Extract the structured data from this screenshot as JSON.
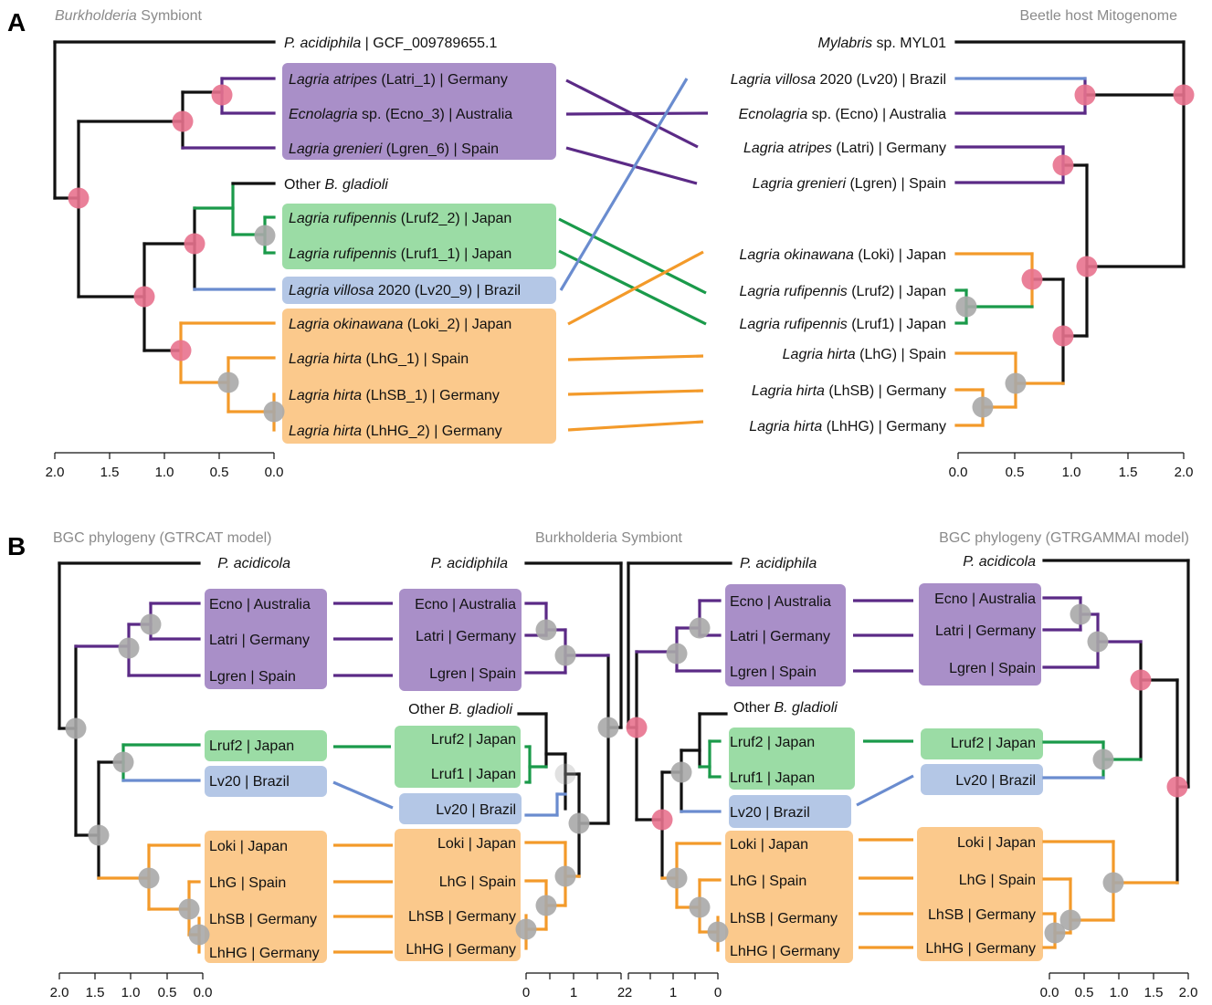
{
  "colors": {
    "purple": "#5b2a86",
    "green": "#1a9a4a",
    "blue": "#6a8ccf",
    "orange": "#f39a2a",
    "black": "#111111",
    "box_purple": "#a98fc8",
    "box_green": "#9bdca5",
    "box_blue": "#b4c7e6",
    "box_orange": "#fbc98c",
    "node_pink": "#e8728e",
    "node_grey": "#a8a8a8"
  },
  "panelA": {
    "letter": "A",
    "left_header_italic": "Burkholderia",
    "left_header_rest": " Symbiont",
    "right_header": "Beetle host Mitogenome",
    "left_tips": [
      {
        "name": "P. acidiphila",
        "rest": " | GCF_009789655.1",
        "color": "black"
      },
      {
        "name": "Lagria atripes",
        "rest": " (Latri_1) | Germany",
        "color": "purple"
      },
      {
        "name": "Ecnolagria",
        "rest": " sp. (Ecno_3) | Australia",
        "color": "purple"
      },
      {
        "name": "Lagria grenieri",
        "rest": " (Lgren_6) | Spain",
        "color": "purple"
      },
      {
        "pre": "Other ",
        "name": "B. gladioli",
        "rest": "",
        "color": "black"
      },
      {
        "name": "Lagria rufipennis",
        "rest": " (Lruf2_2) | Japan",
        "color": "green"
      },
      {
        "name": "Lagria rufipennis",
        "rest": " (Lruf1_1) | Japan",
        "color": "green"
      },
      {
        "name": "Lagria villosa",
        "rest": " 2020 (Lv20_9) | Brazil",
        "color": "blue"
      },
      {
        "name": "Lagria okinawana",
        "rest": " (Loki_2) | Japan",
        "color": "orange"
      },
      {
        "name": "Lagria hirta",
        "rest": " (LhG_1) | Spain",
        "color": "orange"
      },
      {
        "name": "Lagria hirta",
        "rest": " (LhSB_1) | Germany",
        "color": "orange"
      },
      {
        "name": "Lagria hirta",
        "rest": " (LhHG_2) | Germany",
        "color": "orange"
      }
    ],
    "right_tips": [
      {
        "name": "Mylabris",
        "rest": " sp. MYL01",
        "color": "black"
      },
      {
        "name": "Lagria villosa",
        "rest": " 2020 (Lv20) | Brazil",
        "color": "blue"
      },
      {
        "name": "Ecnolagria",
        "rest": " sp. (Ecno) | Australia",
        "color": "purple"
      },
      {
        "name": "Lagria atripes",
        "rest": " (Latri) | Germany",
        "color": "purple"
      },
      {
        "name": "Lagria grenieri",
        "rest": " (Lgren) | Spain",
        "color": "purple"
      },
      {
        "name": "Lagria okinawana",
        "rest": " (Loki) | Japan",
        "color": "orange"
      },
      {
        "name": "Lagria rufipennis",
        "rest": " (Lruf2) | Japan",
        "color": "green"
      },
      {
        "name": "Lagria rufipennis",
        "rest": " (Lruf1) | Japan",
        "color": "green"
      },
      {
        "name": "Lagria hirta",
        "rest": " (LhG) | Spain",
        "color": "orange"
      },
      {
        "name": "Lagria hirta",
        "rest": " (LhSB) | Germany",
        "color": "orange"
      },
      {
        "name": "Lagria hirta",
        "rest": " (LhHG) | Germany",
        "color": "orange"
      }
    ],
    "left_axis_ticks": [
      "2.0",
      "1.5",
      "1.0",
      "0.5",
      "0.0"
    ],
    "right_axis_ticks": [
      "0.0",
      "0.5",
      "1.0",
      "1.5",
      "2.0"
    ]
  },
  "panelB": {
    "letter": "B",
    "header_left": "BGC phylogeny (GTRCAT model)",
    "header_mid": "Burkholderia Symbiont",
    "header_right": "BGC phylogeny (GTRGAMMAI model)",
    "outgroup_left": "P. acidicola",
    "outgroup_mid_left": "P. acidiphila",
    "outgroup_mid_right": "P. acidiphila",
    "outgroup_right": "P. acidicola",
    "other_pre": "Other ",
    "other_name": "B. gladioli",
    "col1_tips": [
      "Ecno | Australia",
      "Latri | Germany",
      "Lgren | Spain",
      "Lruf2 | Japan",
      "Lv20 | Brazil",
      "Loki | Japan",
      "LhG | Spain",
      "LhSB | Germany",
      "LhHG | Germany"
    ],
    "col2_tips": [
      "Ecno | Australia",
      "Latri | Germany",
      "Lgren | Spain",
      "Lruf2 | Japan",
      "Lruf1 | Japan",
      "Lv20 | Brazil",
      "Loki | Japan",
      "LhG | Spain",
      "LhSB | Germany",
      "LhHG | Germany"
    ],
    "col3_tips": [
      "Ecno | Australia",
      "Latri | Germany",
      "Lgren | Spain",
      "Lruf2 | Japan",
      "Lruf1 | Japan",
      "Lv20 | Brazil",
      "Loki | Japan",
      "LhG | Spain",
      "LhSB | Germany",
      "LhHG | Germany"
    ],
    "col4_tips": [
      "Ecno | Australia",
      "Latri | Germany",
      "Lgren | Spain",
      "Lruf2 | Japan",
      "Lv20 | Brazil",
      "Loki | Japan",
      "LhG | Spain",
      "LhSB | Germany",
      "LhHG | Germany"
    ],
    "axis1_ticks": [
      "2.0",
      "1.5",
      "1.0",
      "0.5",
      "0.0"
    ],
    "axis2_ticks": [
      "0",
      "1",
      "2"
    ],
    "axis3_ticks": [
      "2",
      "1",
      "0"
    ],
    "axis4_ticks": [
      "0.0",
      "0.5",
      "1.0",
      "1.5",
      "2.0"
    ]
  }
}
